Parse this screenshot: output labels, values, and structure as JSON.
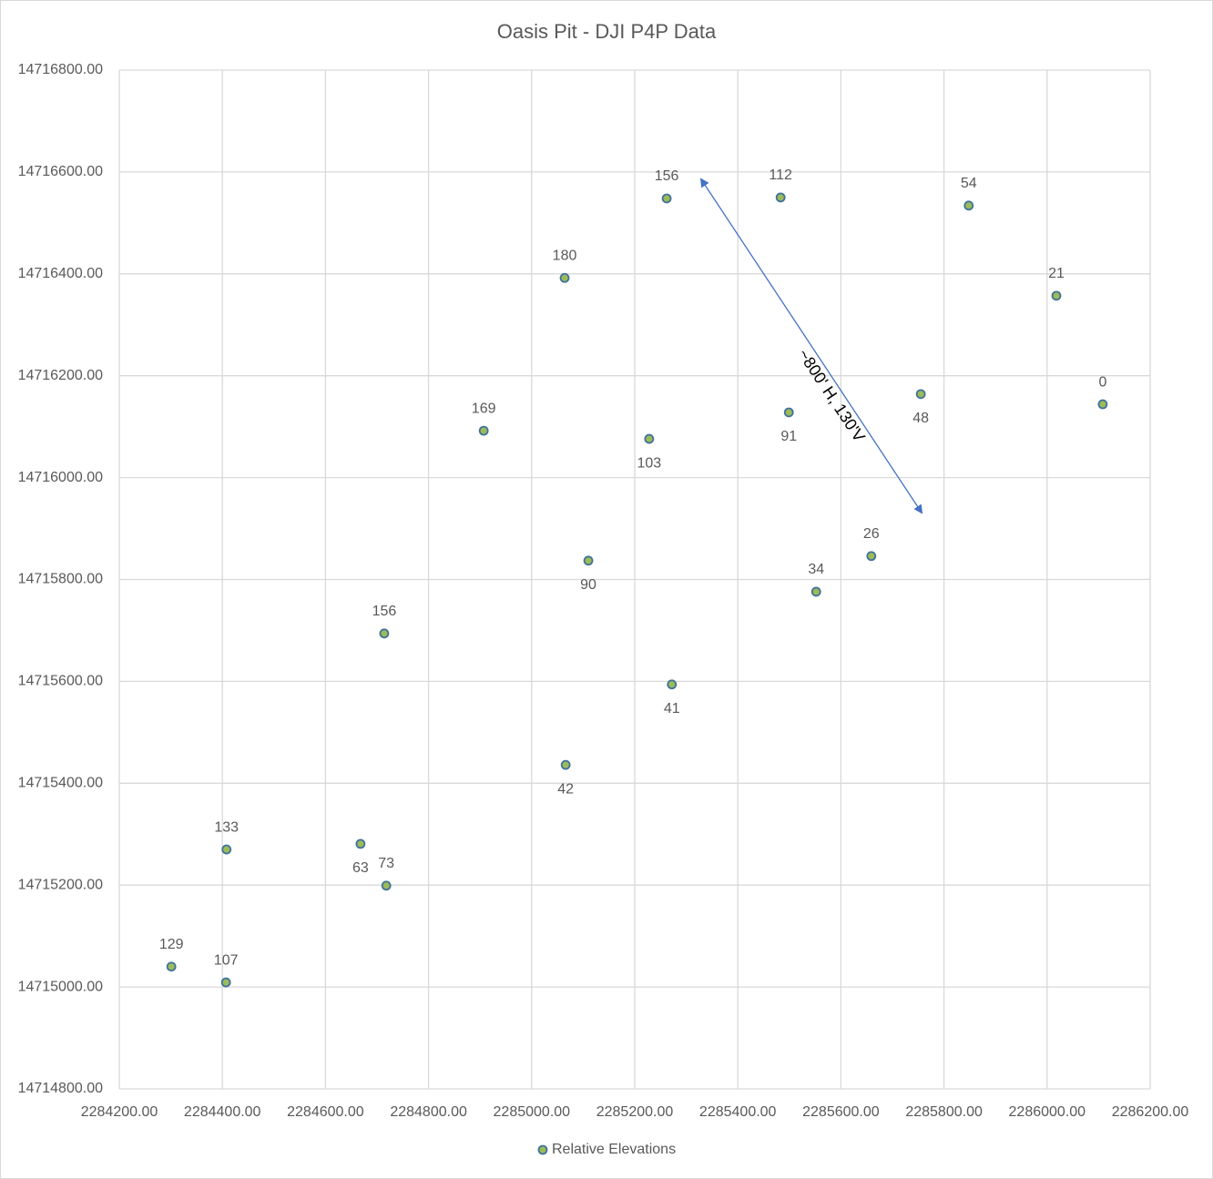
{
  "chart_data": {
    "type": "scatter",
    "title": "Oasis Pit - DJI P4P Data",
    "x": [
      2285262,
      2285483,
      2285848,
      2285064,
      2286018,
      2286108,
      2285755,
      2285499,
      2284907,
      2285228,
      2285659,
      2285110,
      2285552,
      2284714,
      2285272,
      2285066,
      2284408,
      2284668,
      2284718,
      2284301,
      2284407
    ],
    "series": [
      {
        "name": "Relative Elevations",
        "color": "#9bbb59",
        "edge_color": "#41719c",
        "values": [
          14716548,
          14716550,
          14716534,
          14716392,
          14716357,
          14716144,
          14716164,
          14716128,
          14716092,
          14716076,
          14715846,
          14715837,
          14715776,
          14715694,
          14715594,
          14715436,
          14715270,
          14715281,
          14715199,
          14715040,
          14715009
        ],
        "labels": [
          156,
          112,
          54,
          180,
          21,
          0,
          48,
          91,
          169,
          103,
          26,
          90,
          34,
          156,
          41,
          42,
          133,
          63,
          73,
          129,
          107
        ],
        "label_position": [
          "above",
          "above",
          "above",
          "above",
          "above",
          "above",
          "below",
          "below",
          "above",
          "below",
          "above",
          "below",
          "above",
          "above",
          "below",
          "below",
          "above",
          "below",
          "above",
          "above",
          "above"
        ]
      }
    ],
    "xlim": [
      2284200,
      2286200
    ],
    "xticks": [
      {
        "value": 2284200,
        "label": "2284200.00"
      },
      {
        "value": 2284400,
        "label": "2284400.00"
      },
      {
        "value": 2284600,
        "label": "2284600.00"
      },
      {
        "value": 2284800,
        "label": "2284800.00"
      },
      {
        "value": 2285000,
        "label": "2285000.00"
      },
      {
        "value": 2285200,
        "label": "2285200.00"
      },
      {
        "value": 2285400,
        "label": "2285400.00"
      },
      {
        "value": 2285600,
        "label": "2285600.00"
      },
      {
        "value": 2285800,
        "label": "2285800.00"
      },
      {
        "value": 2286000,
        "label": "2286000.00"
      },
      {
        "value": 2286200,
        "label": "2286200.00"
      }
    ],
    "ylim": [
      14714800,
      14716800
    ],
    "yticks": [
      {
        "value": 14714800,
        "label": "14714800.00"
      },
      {
        "value": 14715000,
        "label": "14715000.00"
      },
      {
        "value": 14715200,
        "label": "14715200.00"
      },
      {
        "value": 14715400,
        "label": "14715400.00"
      },
      {
        "value": 14715600,
        "label": "14715600.00"
      },
      {
        "value": 14715800,
        "label": "14715800.00"
      },
      {
        "value": 14716000,
        "label": "14716000.00"
      },
      {
        "value": 14716200,
        "label": "14716200.00"
      },
      {
        "value": 14716400,
        "label": "14716400.00"
      },
      {
        "value": 14716600,
        "label": "14716600.00"
      },
      {
        "value": 14716800,
        "label": "14716800.00"
      }
    ],
    "grid": true,
    "legend": "bottom",
    "annotation": "~800' H, 130'V"
  }
}
